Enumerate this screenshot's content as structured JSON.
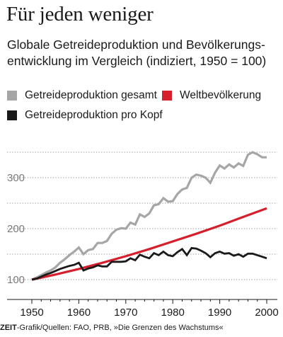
{
  "header": {
    "title": "Für jeden weniger",
    "subtitle": "Globale Getreideproduktion und Bevölkerungs­entwicklung im Vergleich (indiziert, 1950 = 100)"
  },
  "footer": {
    "brand": "ZEIT",
    "source": "-Grafik/Quellen: FAO, PRB, »Die Grenzen des Wachstums«"
  },
  "colors": {
    "gesamt": "#a6a6a6",
    "bevoelkerung": "#d61f2c",
    "prokopf": "#1a1a1a",
    "grid": "#8c8c8c"
  },
  "chart_data": {
    "type": "line",
    "title": "Für jeden weniger",
    "subtitle": "Globale Getreideproduktion und Bevölkerungsentwicklung im Vergleich (indiziert, 1950 = 100)",
    "xlabel": "",
    "ylabel": "",
    "xlim": [
      1950,
      2001
    ],
    "ylim": [
      100,
      350
    ],
    "xticks": [
      1950,
      1960,
      1970,
      1980,
      1990,
      2000
    ],
    "yticks": [
      100,
      200,
      300
    ],
    "grid": "horizontal dotted",
    "legend_placement": "top",
    "series": [
      {
        "name": "Getreideproduktion gesamt",
        "color_key": "gesamt",
        "x": [
          1950,
          1951,
          1952,
          1953,
          1954,
          1955,
          1956,
          1957,
          1958,
          1959,
          1960,
          1961,
          1962,
          1963,
          1964,
          1965,
          1966,
          1967,
          1968,
          1969,
          1970,
          1971,
          1972,
          1973,
          1974,
          1975,
          1976,
          1977,
          1978,
          1979,
          1980,
          1981,
          1982,
          1983,
          1984,
          1985,
          1986,
          1987,
          1988,
          1989,
          1990,
          1991,
          1992,
          1993,
          1994,
          1995,
          1996,
          1997,
          1998,
          1999,
          2000
        ],
        "y": [
          100,
          104,
          109,
          114,
          118,
          124,
          133,
          140,
          148,
          155,
          163,
          150,
          158,
          160,
          172,
          172,
          176,
          190,
          198,
          201,
          200,
          212,
          208,
          228,
          223,
          230,
          246,
          248,
          260,
          253,
          254,
          268,
          277,
          280,
          300,
          306,
          304,
          300,
          290,
          310,
          324,
          318,
          326,
          320,
          328,
          323,
          345,
          350,
          346,
          340,
          340
        ]
      },
      {
        "name": "Weltbevölkerung",
        "color_key": "bevoelkerung",
        "x": [
          1950,
          1955,
          1960,
          1965,
          1970,
          1975,
          1980,
          1985,
          1990,
          1995,
          2000
        ],
        "y": [
          100,
          110,
          121,
          133,
          146,
          160,
          175,
          190,
          206,
          223,
          240
        ]
      },
      {
        "name": "Getreideproduktion pro Kopf",
        "color_key": "prokopf",
        "x": [
          1950,
          1951,
          1952,
          1953,
          1954,
          1955,
          1956,
          1957,
          1958,
          1959,
          1960,
          1961,
          1962,
          1963,
          1964,
          1965,
          1966,
          1967,
          1968,
          1969,
          1970,
          1971,
          1972,
          1973,
          1974,
          1975,
          1976,
          1977,
          1978,
          1979,
          1980,
          1981,
          1982,
          1983,
          1984,
          1985,
          1986,
          1987,
          1988,
          1989,
          1990,
          1991,
          1992,
          1993,
          1994,
          1995,
          1996,
          1997,
          1998,
          1999,
          2000
        ],
        "y": [
          100,
          102,
          106,
          110,
          113,
          117,
          121,
          124,
          127,
          129,
          133,
          118,
          122,
          124,
          128,
          126,
          126,
          135,
          135,
          135,
          136,
          142,
          138,
          149,
          145,
          142,
          152,
          148,
          155,
          148,
          146,
          154,
          160,
          148,
          162,
          161,
          157,
          152,
          144,
          152,
          155,
          151,
          152,
          147,
          150,
          145,
          151,
          151,
          148,
          145,
          142
        ]
      }
    ]
  }
}
